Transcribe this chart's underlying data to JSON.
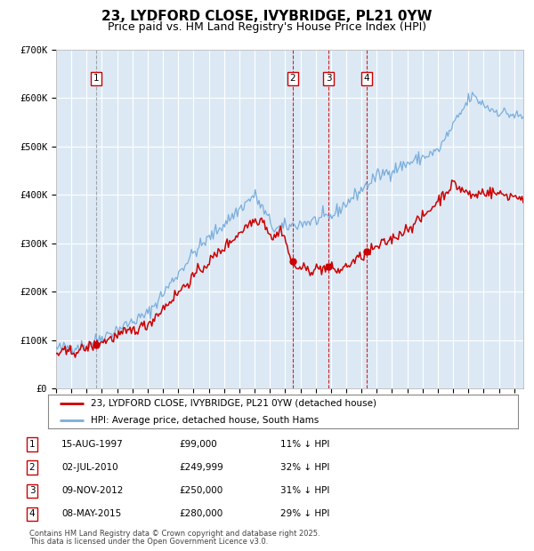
{
  "title": "23, LYDFORD CLOSE, IVYBRIDGE, PL21 0YW",
  "subtitle": "Price paid vs. HM Land Registry's House Price Index (HPI)",
  "title_fontsize": 11,
  "subtitle_fontsize": 9,
  "fig_bg_color": "#ffffff",
  "plot_bg_color": "#dce9f5",
  "legend_entries": [
    "23, LYDFORD CLOSE, IVYBRIDGE, PL21 0YW (detached house)",
    "HPI: Average price, detached house, South Hams"
  ],
  "legend_colors": [
    "#cc0000",
    "#7aaddc"
  ],
  "transactions": [
    {
      "num": 1,
      "date": "15-AUG-1997",
      "price": "99,000",
      "pct": "11%",
      "x_year": 1997.62
    },
    {
      "num": 2,
      "date": "02-JUL-2010",
      "price": "249,999",
      "pct": "32%",
      "x_year": 2010.5
    },
    {
      "num": 3,
      "date": "09-NOV-2012",
      "price": "250,000",
      "pct": "31%",
      "x_year": 2012.85
    },
    {
      "num": 4,
      "date": "08-MAY-2015",
      "price": "280,000",
      "pct": "29%",
      "x_year": 2015.35
    }
  ],
  "footer_line1": "Contains HM Land Registry data © Crown copyright and database right 2025.",
  "footer_line2": "This data is licensed under the Open Government Licence v3.0.",
  "ylim": [
    0,
    700000
  ],
  "yticks": [
    0,
    100000,
    200000,
    300000,
    400000,
    500000,
    600000,
    700000
  ],
  "ytick_labels": [
    "£0",
    "£100K",
    "£200K",
    "£300K",
    "£400K",
    "£500K",
    "£600K",
    "£700K"
  ],
  "xlim_start": 1995.0,
  "xlim_end": 2025.6,
  "red_line_color": "#cc0000",
  "blue_line_color": "#7aaddc",
  "grid_color": "#ffffff",
  "vline_color_1": "#888888",
  "vline_color_rest": "#cc0000",
  "label_box_color": "#cc0000",
  "rand_seed": 42,
  "noise_hpi": 7000,
  "noise_red": 6000
}
